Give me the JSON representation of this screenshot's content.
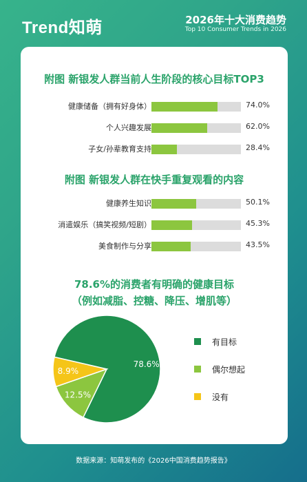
{
  "header": {
    "logo": "Trend知萌",
    "title": "2026年十大消费趋势",
    "subtitle": "Top 10 Consumer Trends in 2026"
  },
  "colors": {
    "brand_green": "#2aa36a",
    "bar_fill": "#8cc63f",
    "bar_track": "#dcdcdc",
    "pie_main": "#1e8f4e",
    "pie_second": "#8cc63f",
    "pie_third": "#f5c518"
  },
  "chart_data": [
    {
      "type": "bar",
      "orientation": "horizontal",
      "title": "附图 新银发人群当前人生阶段的核心目标TOP3",
      "categories": [
        "健康储备（拥有好身体）",
        "个人兴趣发展",
        "子女/孙辈教育支持"
      ],
      "values": [
        74.0,
        62.0,
        28.4
      ],
      "value_labels": [
        "74.0%",
        "62.0%",
        "28.4%"
      ],
      "xlim": [
        0,
        100
      ],
      "unit": "%"
    },
    {
      "type": "bar",
      "orientation": "horizontal",
      "title": "附图 新银发人群在快手重复观看的内容",
      "categories": [
        "健康养生知识",
        "消遣娱乐（搞笑视频/短剧）",
        "美食制作与分享"
      ],
      "values": [
        50.1,
        45.3,
        43.5
      ],
      "value_labels": [
        "50.1%",
        "45.3%",
        "43.5%"
      ],
      "xlim": [
        0,
        100
      ],
      "unit": "%"
    },
    {
      "type": "pie",
      "title_line1": "78.6%的消费者有明确的健康目标",
      "title_line2": "（例如减脂、控糖、降压、增肌等）",
      "labels": [
        "有目标",
        "偶尔想起",
        "没有"
      ],
      "values": [
        78.6,
        12.5,
        8.9
      ],
      "value_labels": [
        "78.6%",
        "12.5%",
        "8.9%"
      ],
      "colors": [
        "#1e8f4e",
        "#8cc63f",
        "#f5c518"
      ],
      "legend_position": "right"
    }
  ],
  "footer": {
    "source": "数据来源：知萌发布的《2026中国消费趋势报告》"
  }
}
